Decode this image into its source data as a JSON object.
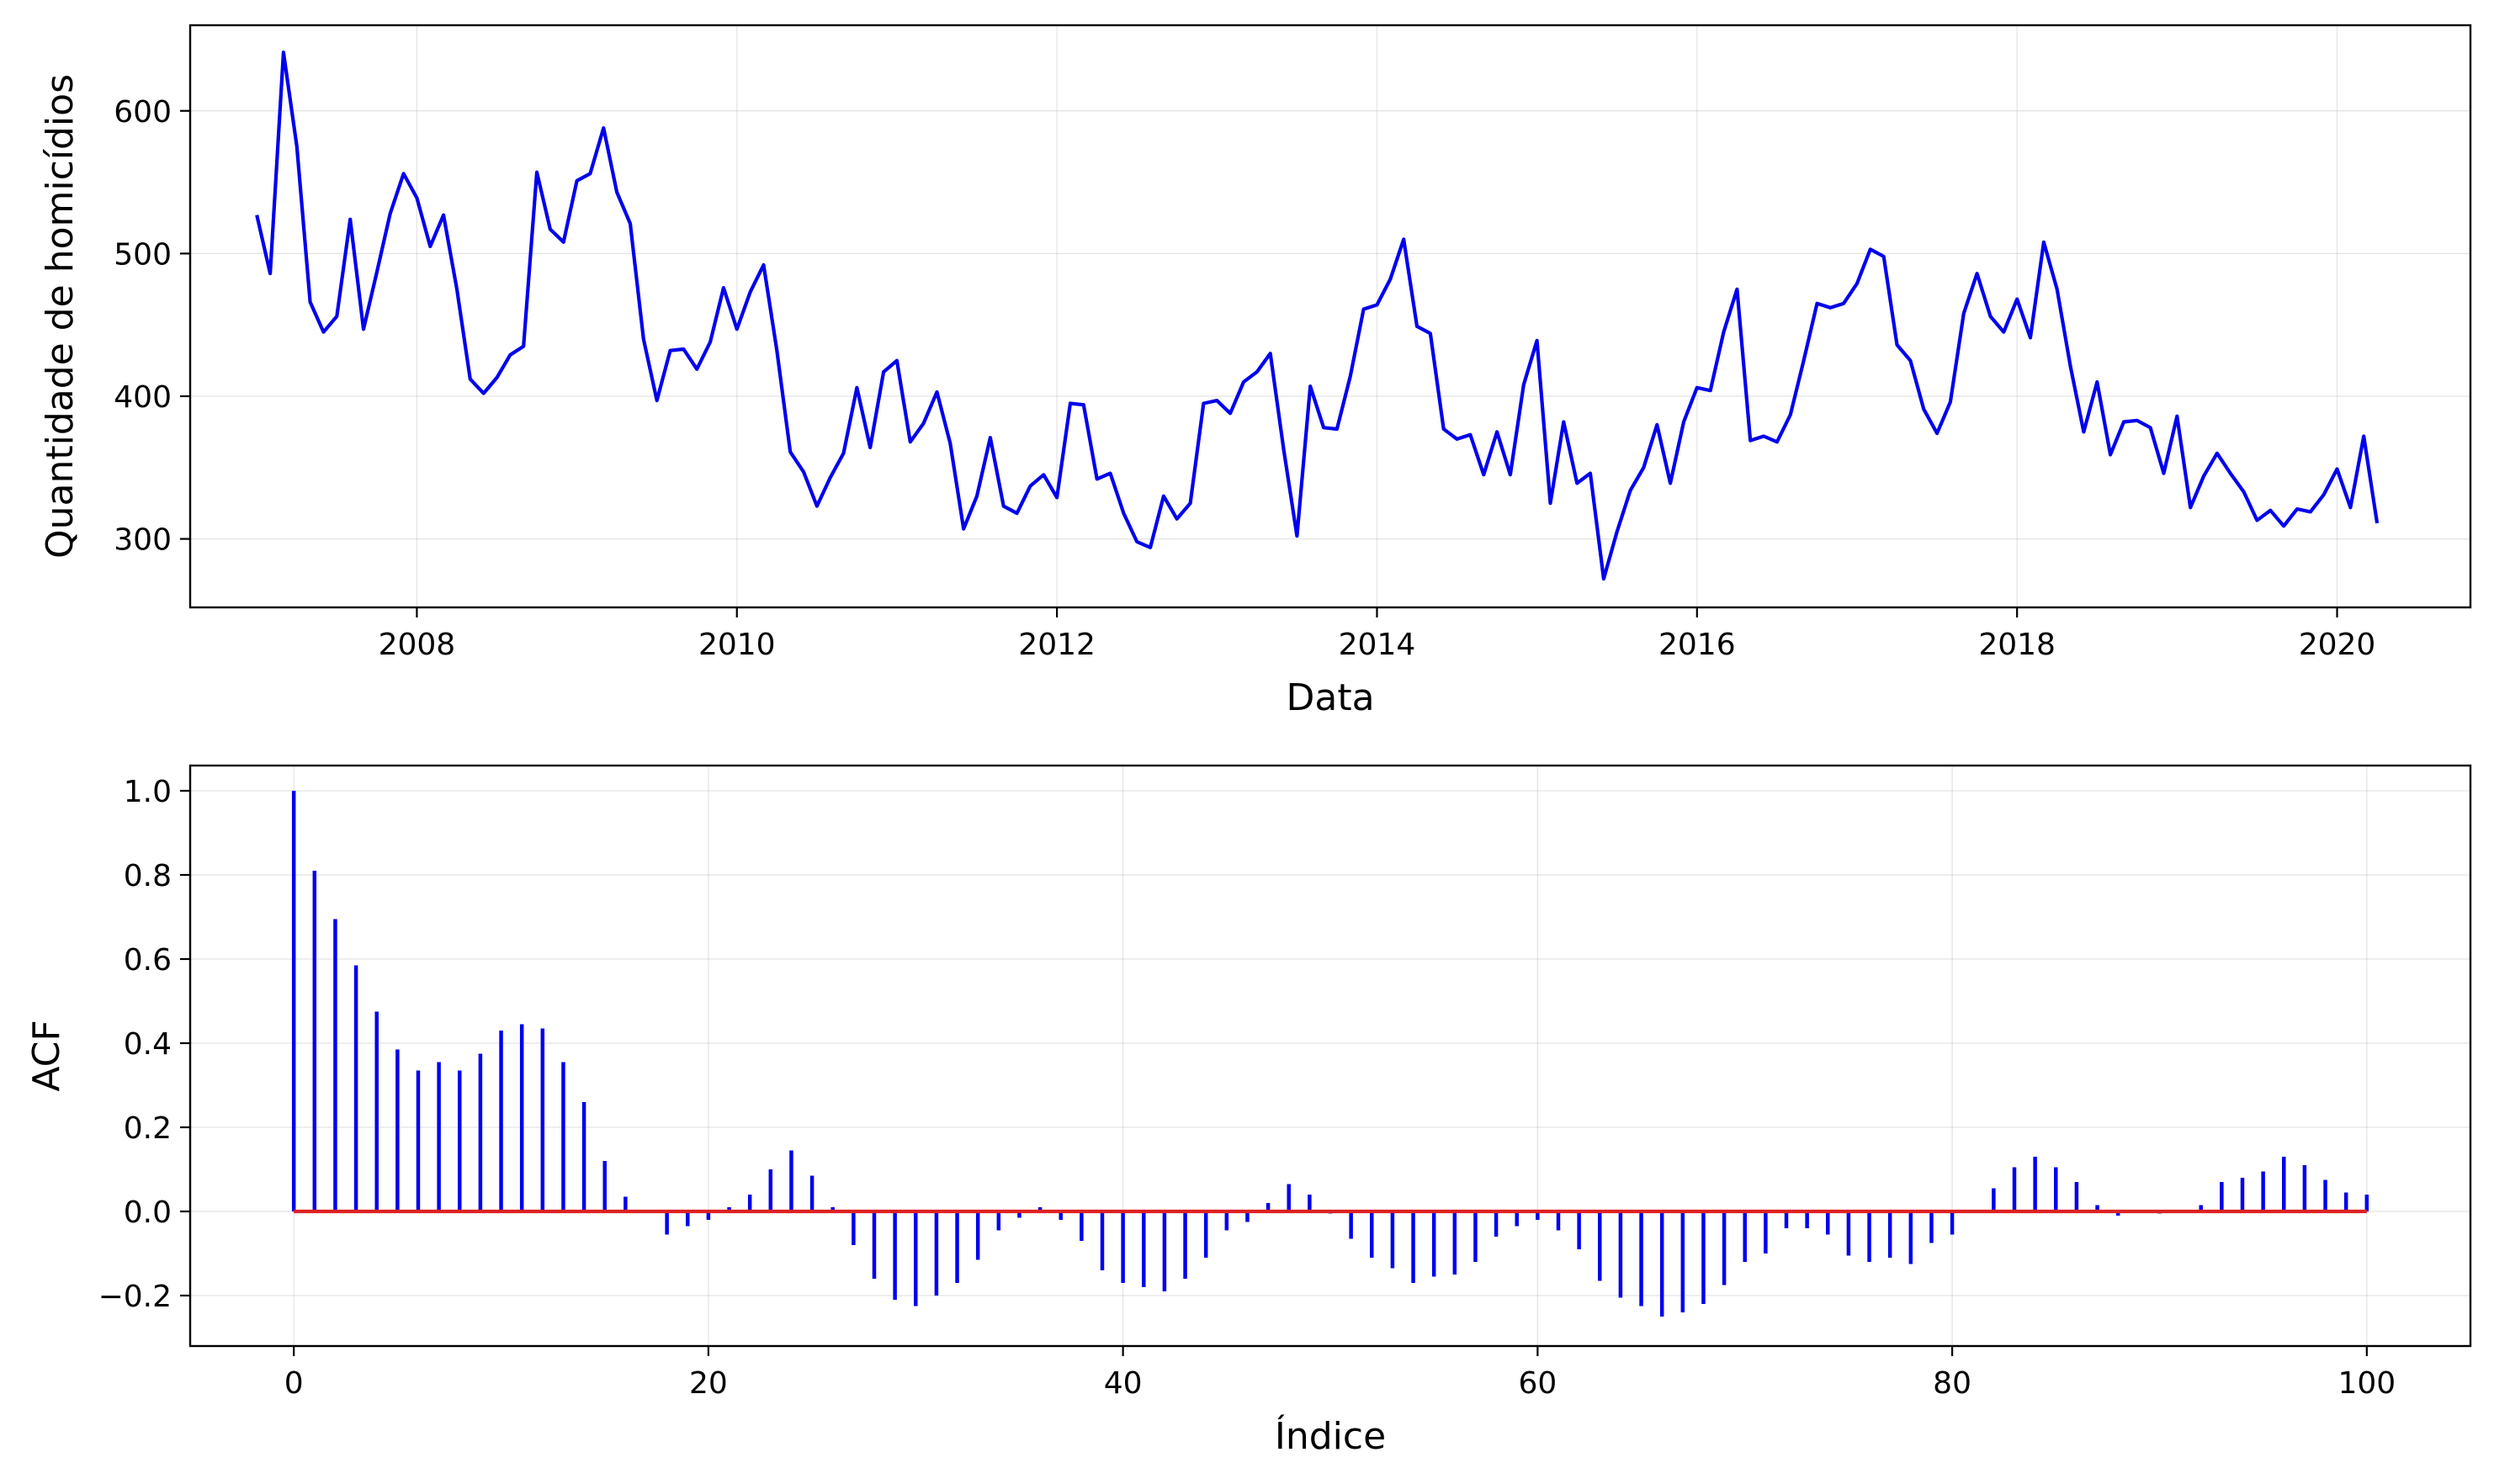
{
  "chart_data": [
    {
      "type": "line",
      "title": "",
      "xlabel": "Data",
      "ylabel": "Quantidade de homicídios",
      "xlim": [
        "2006-08",
        "2020-11"
      ],
      "ylim": [
        252,
        660
      ],
      "x_ticks": [
        "2008",
        "2010",
        "2012",
        "2014",
        "2016",
        "2018",
        "2020"
      ],
      "y_ticks": [
        300,
        400,
        500,
        600
      ],
      "grid": true,
      "colors": {
        "series": "#0000ee"
      },
      "x_start": "2007-01",
      "x_step": "month",
      "series": [
        {
          "values": [
            527,
            486,
            641,
            575,
            466,
            445,
            456,
            524,
            447,
            487,
            528,
            556,
            539,
            505,
            527,
            475,
            412,
            402,
            413,
            429,
            435,
            557,
            517,
            508,
            551,
            556,
            588,
            543,
            521,
            440,
            397,
            432,
            433,
            419,
            438,
            476,
            447,
            473,
            492,
            432,
            361,
            347,
            323,
            343,
            360,
            406,
            364,
            417,
            425,
            368,
            381,
            403,
            367,
            307,
            330,
            371,
            323,
            318,
            337,
            345,
            329,
            395,
            394,
            342,
            346,
            318,
            298,
            294,
            330,
            314,
            325,
            395,
            397,
            388,
            410,
            417,
            430,
            363,
            302,
            407,
            378,
            377,
            414,
            461,
            464,
            482,
            510,
            449,
            444,
            377,
            370,
            373,
            345,
            375,
            345,
            408,
            439,
            325,
            382,
            339,
            346,
            272,
            305,
            334,
            350,
            380,
            339,
            382,
            406,
            404,
            445,
            475,
            369,
            372,
            368,
            387,
            425,
            465,
            462,
            465,
            479,
            503,
            498,
            436,
            425,
            391,
            374,
            396,
            458,
            486,
            456,
            445,
            468,
            441,
            508,
            475,
            421,
            375,
            410,
            359,
            382,
            383,
            378,
            346,
            386,
            322,
            344,
            360,
            346,
            333,
            313,
            320,
            309,
            321,
            319,
            331,
            349,
            322,
            372,
            311
          ]
        }
      ]
    },
    {
      "type": "bar",
      "title": "",
      "xlabel": "Índice",
      "ylabel": "ACF",
      "xlim": [
        -5,
        105
      ],
      "ylim": [
        -0.32,
        1.06
      ],
      "x_ticks": [
        0,
        20,
        40,
        60,
        80,
        100
      ],
      "y_ticks": [
        "1.0",
        "0.8",
        "0.6",
        "0.4",
        "0.2",
        "0.0",
        "−0.2"
      ],
      "grid": true,
      "colors": {
        "stems": "#0000ee",
        "baseline": "#dd2222"
      },
      "x": [
        0,
        1,
        2,
        3,
        4,
        5,
        6,
        7,
        8,
        9,
        10,
        11,
        12,
        13,
        14,
        15,
        16,
        17,
        18,
        19,
        20,
        21,
        22,
        23,
        24,
        25,
        26,
        27,
        28,
        29,
        30,
        31,
        32,
        33,
        34,
        35,
        36,
        37,
        38,
        39,
        40,
        41,
        42,
        43,
        44,
        45,
        46,
        47,
        48,
        49,
        50,
        51,
        52,
        53,
        54,
        55,
        56,
        57,
        58,
        59,
        60,
        61,
        62,
        63,
        64,
        65,
        66,
        67,
        68,
        69,
        70,
        71,
        72,
        73,
        74,
        75,
        76,
        77,
        78,
        79,
        80,
        81,
        82,
        83,
        84,
        85,
        86,
        87,
        88,
        89,
        90,
        91,
        92,
        93,
        94,
        95,
        96,
        97,
        98,
        99,
        100
      ],
      "values": [
        1.0,
        0.81,
        0.695,
        0.585,
        0.475,
        0.385,
        0.335,
        0.355,
        0.335,
        0.375,
        0.43,
        0.445,
        0.435,
        0.355,
        0.26,
        0.12,
        0.035,
        0.0,
        -0.055,
        -0.035,
        -0.02,
        0.01,
        0.04,
        0.1,
        0.145,
        0.085,
        0.01,
        -0.08,
        -0.16,
        -0.21,
        -0.225,
        -0.2,
        -0.17,
        -0.115,
        -0.045,
        -0.015,
        0.01,
        -0.02,
        -0.07,
        -0.14,
        -0.17,
        -0.18,
        -0.19,
        -0.16,
        -0.11,
        -0.045,
        -0.025,
        0.02,
        0.065,
        0.04,
        -0.005,
        -0.065,
        -0.11,
        -0.135,
        -0.17,
        -0.155,
        -0.15,
        -0.12,
        -0.06,
        -0.035,
        -0.02,
        -0.045,
        -0.09,
        -0.165,
        -0.205,
        -0.225,
        -0.25,
        -0.24,
        -0.22,
        -0.175,
        -0.12,
        -0.1,
        -0.04,
        -0.04,
        -0.055,
        -0.105,
        -0.12,
        -0.11,
        -0.125,
        -0.075,
        -0.055,
        0.0,
        0.055,
        0.105,
        0.13,
        0.105,
        0.07,
        0.015,
        -0.01,
        0.0,
        -0.005,
        0.0,
        0.015,
        0.07,
        0.08,
        0.095,
        0.13,
        0.11,
        0.075,
        0.045,
        0.04
      ]
    }
  ]
}
